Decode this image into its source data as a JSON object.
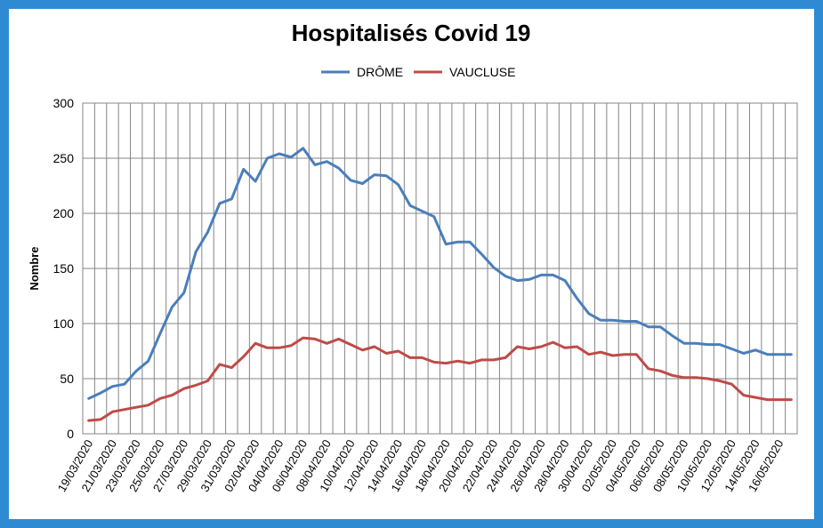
{
  "chart_data": {
    "type": "line",
    "title": "Hospitalisés Covid 19",
    "xlabel": "",
    "ylabel": "Nombre",
    "ylim": [
      0,
      300
    ],
    "y_ticks": [
      "0",
      "50",
      "100",
      "150",
      "200",
      "250",
      "300"
    ],
    "grid": true,
    "legend_position": "top-center",
    "x": [
      "19/03/2020",
      "20/03/2020",
      "21/03/2020",
      "22/03/2020",
      "23/03/2020",
      "24/03/2020",
      "25/03/2020",
      "26/03/2020",
      "27/03/2020",
      "28/03/2020",
      "29/03/2020",
      "30/03/2020",
      "31/03/2020",
      "01/04/2020",
      "02/04/2020",
      "03/04/2020",
      "04/04/2020",
      "05/04/2020",
      "06/04/2020",
      "07/04/2020",
      "08/04/2020",
      "09/04/2020",
      "10/04/2020",
      "11/04/2020",
      "12/04/2020",
      "13/04/2020",
      "14/04/2020",
      "15/04/2020",
      "16/04/2020",
      "17/04/2020",
      "18/04/2020",
      "19/04/2020",
      "20/04/2020",
      "21/04/2020",
      "22/04/2020",
      "23/04/2020",
      "24/04/2020",
      "25/04/2020",
      "26/04/2020",
      "27/04/2020",
      "28/04/2020",
      "29/04/2020",
      "30/04/2020",
      "01/05/2020",
      "02/05/2020",
      "03/05/2020",
      "04/05/2020",
      "05/05/2020",
      "06/05/2020",
      "07/05/2020",
      "08/05/2020",
      "09/05/2020",
      "10/05/2020",
      "11/05/2020",
      "12/05/2020",
      "13/05/2020",
      "14/05/2020",
      "15/05/2020",
      "16/05/2020",
      "17/05/2020"
    ],
    "x_tick_labels": [
      "19/03/2020",
      "21/03/2020",
      "23/03/2020",
      "25/03/2020",
      "27/03/2020",
      "29/03/2020",
      "31/03/2020",
      "02/04/2020",
      "04/04/2020",
      "06/04/2020",
      "08/04/2020",
      "10/04/2020",
      "12/04/2020",
      "14/04/2020",
      "16/04/2020",
      "18/04/2020",
      "20/04/2020",
      "22/04/2020",
      "24/04/2020",
      "26/04/2020",
      "28/04/2020",
      "30/04/2020",
      "02/05/2020",
      "04/05/2020",
      "06/05/2020",
      "08/05/2020",
      "10/05/2020",
      "12/05/2020",
      "14/05/2020",
      "16/05/2020"
    ],
    "series": [
      {
        "name": "DRÔME",
        "color": "#4a7ebb",
        "values": [
          32,
          37,
          43,
          45,
          57,
          66,
          91,
          115,
          128,
          165,
          183,
          209,
          213,
          240,
          229,
          250,
          254,
          251,
          259,
          244,
          247,
          241,
          230,
          227,
          235,
          234,
          226,
          207,
          202,
          197,
          172,
          174,
          174,
          163,
          151,
          143,
          139,
          140,
          144,
          144,
          139,
          123,
          109,
          103,
          103,
          102,
          102,
          97,
          97,
          89,
          82,
          82,
          81,
          81,
          77,
          73,
          76,
          72,
          72,
          72
        ]
      },
      {
        "name": "VAUCLUSE",
        "color": "#be4b48",
        "values": [
          12,
          13,
          20,
          22,
          24,
          26,
          32,
          35,
          41,
          44,
          48,
          63,
          60,
          70,
          82,
          78,
          78,
          80,
          87,
          86,
          82,
          86,
          81,
          76,
          79,
          73,
          75,
          69,
          69,
          65,
          64,
          66,
          64,
          67,
          67,
          69,
          79,
          77,
          79,
          83,
          78,
          79,
          72,
          74,
          71,
          72,
          72,
          59,
          57,
          53,
          51,
          51,
          50,
          48,
          45,
          35,
          33,
          31,
          31,
          31
        ]
      }
    ]
  }
}
